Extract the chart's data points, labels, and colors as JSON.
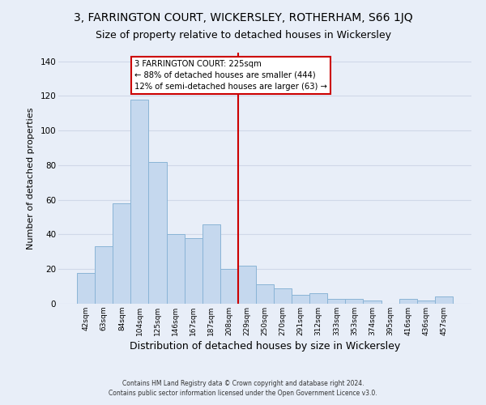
{
  "title1": "3, FARRINGTON COURT, WICKERSLEY, ROTHERHAM, S66 1JQ",
  "title2": "Size of property relative to detached houses in Wickersley",
  "xlabel": "Distribution of detached houses by size in Wickersley",
  "ylabel": "Number of detached properties",
  "bar_labels": [
    "42sqm",
    "63sqm",
    "84sqm",
    "104sqm",
    "125sqm",
    "146sqm",
    "167sqm",
    "187sqm",
    "208sqm",
    "229sqm",
    "250sqm",
    "270sqm",
    "291sqm",
    "312sqm",
    "333sqm",
    "353sqm",
    "374sqm",
    "395sqm",
    "416sqm",
    "436sqm",
    "457sqm"
  ],
  "bar_heights": [
    18,
    33,
    58,
    118,
    82,
    40,
    38,
    46,
    20,
    22,
    11,
    9,
    5,
    6,
    3,
    3,
    2,
    0,
    3,
    2,
    4
  ],
  "bar_color": "#c5d8ee",
  "bar_edge_color": "#8ab4d6",
  "vline_color": "#cc0000",
  "annotation_title": "3 FARRINGTON COURT: 225sqm",
  "annotation_line1": "← 88% of detached houses are smaller (444)",
  "annotation_line2": "12% of semi-detached houses are larger (63) →",
  "annotation_box_color": "#ffffff",
  "annotation_box_edge": "#cc0000",
  "ylim": [
    0,
    145
  ],
  "yticks": [
    0,
    20,
    40,
    60,
    80,
    100,
    120,
    140
  ],
  "footer1": "Contains HM Land Registry data © Crown copyright and database right 2024.",
  "footer2": "Contains public sector information licensed under the Open Government Licence v3.0.",
  "bg_color": "#e8eef8",
  "grid_color": "#d0d8e8",
  "title1_fontsize": 10,
  "title2_fontsize": 9,
  "xlabel_fontsize": 9,
  "ylabel_fontsize": 8
}
